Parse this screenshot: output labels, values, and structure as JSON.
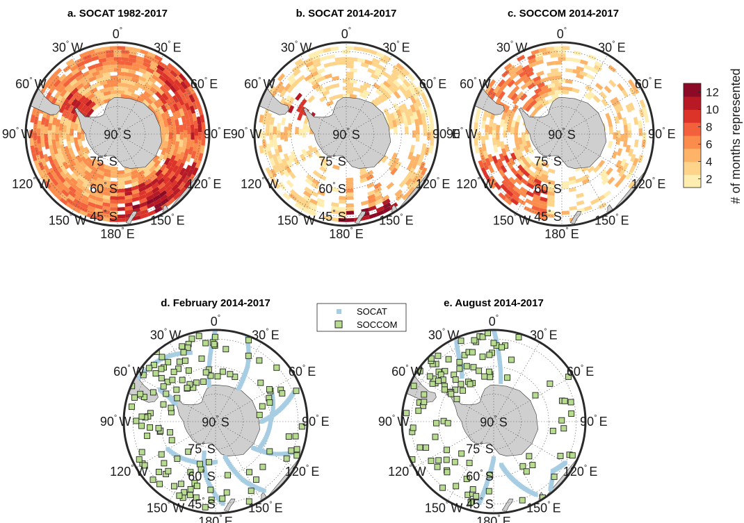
{
  "panels": [
    {
      "id": "a",
      "title": "a. SOCAT 1982-2017",
      "kind": "heatmap",
      "variant": "socat_all"
    },
    {
      "id": "b",
      "title": "b. SOCAT 2014-2017",
      "kind": "heatmap",
      "variant": "socat_recent"
    },
    {
      "id": "c",
      "title": "c. SOCCOM 2014-2017",
      "kind": "heatmap",
      "variant": "soccom"
    },
    {
      "id": "d",
      "title": "d. February 2014-2017",
      "kind": "scatter",
      "variant": "feb"
    },
    {
      "id": "e",
      "title": "e. August 2014-2017",
      "kind": "scatter",
      "variant": "aug"
    }
  ],
  "map_labels": {
    "longitudes": [
      {
        "text": "0",
        "deg": "°",
        "suffix": ""
      },
      {
        "text": "30",
        "deg": "°",
        "suffix": "E"
      },
      {
        "text": "60",
        "deg": "°",
        "suffix": "E"
      },
      {
        "text": "90",
        "deg": "°",
        "suffix": "E"
      },
      {
        "text": "120",
        "deg": "°",
        "suffix": "E"
      },
      {
        "text": "150",
        "deg": "°",
        "suffix": "E"
      },
      {
        "text": "180",
        "deg": "°",
        "suffix": "E"
      },
      {
        "text": "150",
        "deg": "°",
        "suffix": "W"
      },
      {
        "text": "120",
        "deg": "°",
        "suffix": "W"
      },
      {
        "text": "90",
        "deg": "°",
        "suffix": "W"
      },
      {
        "text": "60",
        "deg": "°",
        "suffix": "W"
      },
      {
        "text": "30",
        "deg": "°",
        "suffix": "W"
      }
    ],
    "latitudes": [
      {
        "text": "90",
        "deg": "°",
        "suffix": "S"
      },
      {
        "text": "75",
        "deg": "°",
        "suffix": "S"
      },
      {
        "text": "60",
        "deg": "°",
        "suffix": "S"
      },
      {
        "text": "45",
        "deg": "°",
        "suffix": "S"
      }
    ]
  },
  "colorbar": {
    "label": "# of months represented",
    "ticks": [
      "2",
      "4",
      "6",
      "8",
      "10",
      "12"
    ],
    "range": [
      1,
      13
    ],
    "colors": [
      "#ffeeb0",
      "#fed38a",
      "#fdb469",
      "#fb8c4c",
      "#f2613b",
      "#dd342a",
      "#b81a25",
      "#8c0a26"
    ]
  },
  "legend": {
    "items": [
      {
        "label": "SOCAT",
        "color": "#a7cde3"
      },
      {
        "label": "SOCCOM",
        "color": "#b7dc8f"
      }
    ]
  },
  "chart_data": [
    {
      "type": "heatmap",
      "title": "a. SOCAT 1982-2017",
      "projection": "south polar stereographic",
      "lat_range": [
        -90,
        -40
      ],
      "colorbar_label": "# of months represented",
      "color_range": [
        1,
        13
      ]
    },
    {
      "type": "heatmap",
      "title": "b. SOCAT 2014-2017",
      "projection": "south polar stereographic",
      "lat_range": [
        -90,
        -40
      ],
      "colorbar_label": "# of months represented",
      "color_range": [
        1,
        13
      ]
    },
    {
      "type": "heatmap",
      "title": "c. SOCCOM 2014-2017",
      "projection": "south polar stereographic",
      "lat_range": [
        -90,
        -40
      ],
      "colorbar_label": "# of months represented",
      "color_range": [
        1,
        13
      ]
    },
    {
      "type": "scatter",
      "title": "d. February 2014-2017",
      "projection": "south polar stereographic",
      "series": [
        {
          "name": "SOCAT"
        },
        {
          "name": "SOCCOM"
        }
      ]
    },
    {
      "type": "scatter",
      "title": "e. August 2014-2017",
      "projection": "south polar stereographic",
      "series": [
        {
          "name": "SOCAT"
        },
        {
          "name": "SOCCOM"
        }
      ]
    }
  ]
}
